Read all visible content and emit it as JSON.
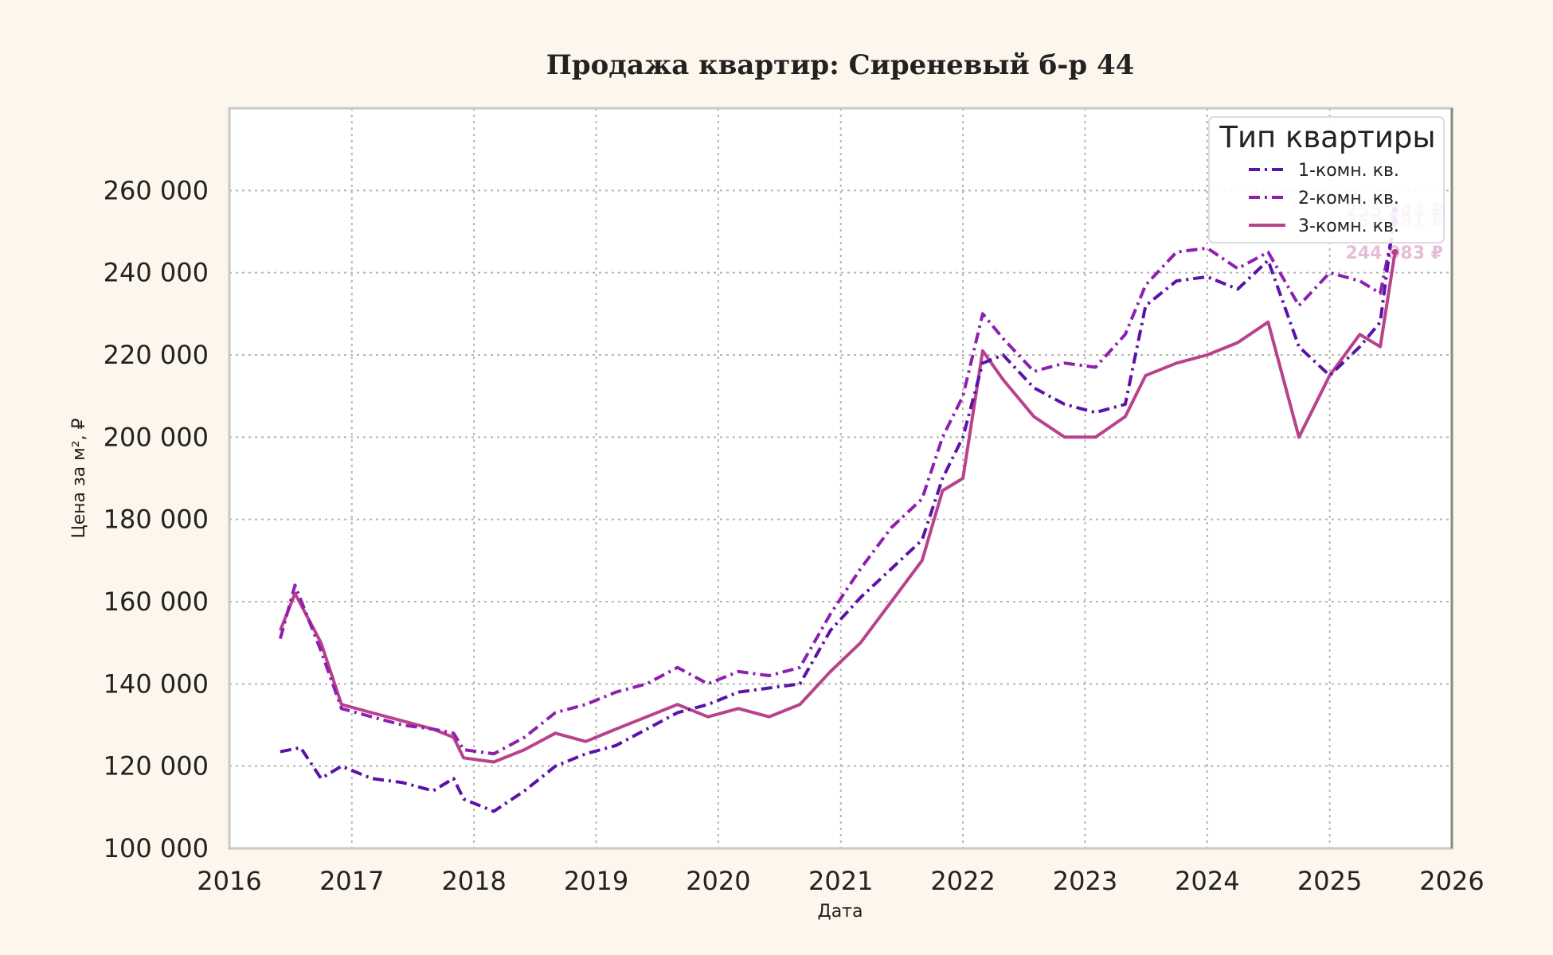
{
  "chart_data": {
    "type": "line",
    "title": "Продажа квартир: Сиреневый б-р 44",
    "xlabel": "Дата",
    "ylabel": "Цена за м², ₽",
    "xlim": [
      "2016-01-01",
      "2026-01-01"
    ],
    "ylim": [
      100000,
      280000
    ],
    "x_ticks": [
      "2016",
      "2017",
      "2018",
      "2019",
      "2020",
      "2021",
      "2022",
      "2023",
      "2024",
      "2025",
      "2026"
    ],
    "y_ticks": [
      100000,
      120000,
      140000,
      160000,
      180000,
      200000,
      220000,
      240000,
      260000
    ],
    "y_tick_labels": [
      "100 000",
      "120 000",
      "140 000",
      "160 000",
      "180 000",
      "200 000",
      "220 000",
      "240 000",
      "260 000"
    ],
    "grid": true,
    "legend": {
      "title": "Тип квартиры",
      "position": "top-right"
    },
    "series": [
      {
        "name": "1-комн. кв.",
        "color": "#5a12a8",
        "dash": "dashdot",
        "end_label": "255 244 ₽",
        "points": [
          [
            "2016-06-01",
            123500
          ],
          [
            "2016-08-01",
            124500
          ],
          [
            "2016-10-01",
            117000
          ],
          [
            "2016-12-01",
            120000
          ],
          [
            "2017-03-01",
            117000
          ],
          [
            "2017-06-01",
            116000
          ],
          [
            "2017-09-01",
            114000
          ],
          [
            "2017-11-01",
            117000
          ],
          [
            "2017-12-01",
            112000
          ],
          [
            "2018-03-01",
            109000
          ],
          [
            "2018-06-01",
            114000
          ],
          [
            "2018-09-01",
            120000
          ],
          [
            "2018-12-01",
            123000
          ],
          [
            "2019-03-01",
            125000
          ],
          [
            "2019-06-01",
            129000
          ],
          [
            "2019-09-01",
            133000
          ],
          [
            "2019-12-01",
            135000
          ],
          [
            "2020-03-01",
            138000
          ],
          [
            "2020-06-01",
            139000
          ],
          [
            "2020-09-01",
            140000
          ],
          [
            "2020-12-01",
            153000
          ],
          [
            "2021-03-01",
            161000
          ],
          [
            "2021-06-01",
            168000
          ],
          [
            "2021-09-01",
            175000
          ],
          [
            "2021-11-01",
            190000
          ],
          [
            "2022-01-01",
            200000
          ],
          [
            "2022-03-01",
            218000
          ],
          [
            "2022-05-01",
            220000
          ],
          [
            "2022-08-01",
            212000
          ],
          [
            "2022-11-01",
            208000
          ],
          [
            "2023-02-01",
            206000
          ],
          [
            "2023-05-01",
            208000
          ],
          [
            "2023-07-01",
            232000
          ],
          [
            "2023-10-01",
            238000
          ],
          [
            "2024-01-01",
            239000
          ],
          [
            "2024-04-01",
            236000
          ],
          [
            "2024-07-01",
            243000
          ],
          [
            "2024-10-01",
            222000
          ],
          [
            "2025-01-01",
            215000
          ],
          [
            "2025-04-01",
            222000
          ],
          [
            "2025-06-01",
            228000
          ],
          [
            "2025-07-15",
            255244
          ]
        ]
      },
      {
        "name": "2-комн. кв.",
        "color": "#8e1fb0",
        "dash": "dashdot",
        "end_label": "252 581 ₽",
        "points": [
          [
            "2016-06-01",
            151000
          ],
          [
            "2016-07-15",
            164000
          ],
          [
            "2016-10-01",
            148000
          ],
          [
            "2016-12-01",
            134000
          ],
          [
            "2017-03-01",
            132000
          ],
          [
            "2017-06-01",
            130000
          ],
          [
            "2017-09-01",
            129000
          ],
          [
            "2017-11-01",
            128000
          ],
          [
            "2017-12-01",
            124000
          ],
          [
            "2018-03-01",
            123000
          ],
          [
            "2018-06-01",
            127000
          ],
          [
            "2018-09-01",
            133000
          ],
          [
            "2018-12-01",
            135000
          ],
          [
            "2019-03-01",
            138000
          ],
          [
            "2019-06-01",
            140000
          ],
          [
            "2019-09-01",
            144000
          ],
          [
            "2019-12-01",
            140000
          ],
          [
            "2020-03-01",
            143000
          ],
          [
            "2020-06-01",
            142000
          ],
          [
            "2020-09-01",
            144000
          ],
          [
            "2020-12-01",
            157000
          ],
          [
            "2021-03-01",
            168000
          ],
          [
            "2021-06-01",
            178000
          ],
          [
            "2021-09-01",
            185000
          ],
          [
            "2021-11-01",
            200000
          ],
          [
            "2022-01-01",
            210000
          ],
          [
            "2022-03-01",
            230000
          ],
          [
            "2022-05-01",
            224000
          ],
          [
            "2022-08-01",
            216000
          ],
          [
            "2022-11-01",
            218000
          ],
          [
            "2023-02-01",
            217000
          ],
          [
            "2023-05-01",
            225000
          ],
          [
            "2023-07-01",
            237000
          ],
          [
            "2023-10-01",
            245000
          ],
          [
            "2024-01-01",
            246000
          ],
          [
            "2024-04-01",
            241000
          ],
          [
            "2024-07-01",
            245000
          ],
          [
            "2024-10-01",
            232000
          ],
          [
            "2025-01-01",
            240000
          ],
          [
            "2025-04-01",
            238000
          ],
          [
            "2025-06-01",
            235000
          ],
          [
            "2025-07-15",
            252581
          ]
        ]
      },
      {
        "name": "3-комн. кв.",
        "color": "#b8428c",
        "dash": "solid",
        "end_label": "244 983 ₽",
        "points": [
          [
            "2016-06-01",
            153000
          ],
          [
            "2016-07-15",
            162000
          ],
          [
            "2016-10-01",
            150000
          ],
          [
            "2016-12-01",
            135000
          ],
          [
            "2017-03-01",
            133000
          ],
          [
            "2017-06-01",
            131000
          ],
          [
            "2017-09-01",
            129000
          ],
          [
            "2017-11-01",
            127000
          ],
          [
            "2017-12-01",
            122000
          ],
          [
            "2018-03-01",
            121000
          ],
          [
            "2018-06-01",
            124000
          ],
          [
            "2018-09-01",
            128000
          ],
          [
            "2018-12-01",
            126000
          ],
          [
            "2019-03-01",
            129000
          ],
          [
            "2019-06-01",
            132000
          ],
          [
            "2019-09-01",
            135000
          ],
          [
            "2019-12-01",
            132000
          ],
          [
            "2020-03-01",
            134000
          ],
          [
            "2020-06-01",
            132000
          ],
          [
            "2020-09-01",
            135000
          ],
          [
            "2020-12-01",
            143000
          ],
          [
            "2021-03-01",
            150000
          ],
          [
            "2021-06-01",
            160000
          ],
          [
            "2021-09-01",
            170000
          ],
          [
            "2021-11-01",
            187000
          ],
          [
            "2022-01-01",
            190000
          ],
          [
            "2022-03-01",
            221000
          ],
          [
            "2022-05-01",
            214000
          ],
          [
            "2022-08-01",
            205000
          ],
          [
            "2022-11-01",
            200000
          ],
          [
            "2023-02-01",
            200000
          ],
          [
            "2023-05-01",
            205000
          ],
          [
            "2023-07-01",
            215000
          ],
          [
            "2023-10-01",
            218000
          ],
          [
            "2024-01-01",
            220000
          ],
          [
            "2024-04-01",
            223000
          ],
          [
            "2024-07-01",
            228000
          ],
          [
            "2024-10-01",
            200000
          ],
          [
            "2025-01-01",
            215000
          ],
          [
            "2025-04-01",
            225000
          ],
          [
            "2025-06-01",
            222000
          ],
          [
            "2025-07-15",
            244983
          ]
        ]
      }
    ]
  }
}
